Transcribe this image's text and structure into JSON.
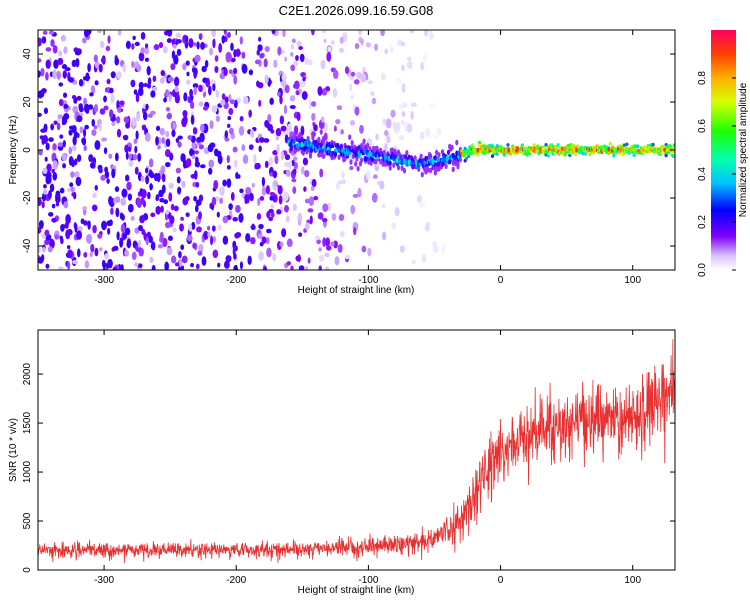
{
  "title": "C2E1.2026.099.16.59.G08",
  "colors": {
    "signal": "#e83030",
    "grid_text": "#000000"
  },
  "chart_data": [
    {
      "type": "heatmap",
      "title": "C2E1.2026.099.16.59.G08",
      "xlabel": "Height of straight line (km)",
      "ylabel": "Frequency (Hz)",
      "xlim": [
        -350,
        132
      ],
      "ylim": [
        -50,
        50
      ],
      "xticks": [
        -300,
        -200,
        -100,
        0,
        100
      ],
      "yticks": [
        -40,
        -20,
        0,
        20,
        40
      ],
      "colorbar": {
        "label": "Normalized spectral amplitude",
        "range": [
          0.0,
          1.0
        ],
        "ticks": [
          0.0,
          0.2,
          0.4,
          0.6,
          0.8
        ],
        "colormap": "rainbow (white/violet to red)"
      },
      "description_points": [
        {
          "x": -350,
          "line_freq": null,
          "noise_amplitude": 0.35
        },
        {
          "x": -160,
          "line_freq": 3,
          "noise_amplitude": 0.25
        },
        {
          "x": -100,
          "line_freq": -2,
          "noise_amplitude": 0.12
        },
        {
          "x": -60,
          "line_freq": -6,
          "noise_amplitude": 0.06
        },
        {
          "x": -35,
          "line_freq": -3,
          "noise_amplitude": 0.0
        },
        {
          "x": -20,
          "line_freq": 0,
          "noise_amplitude": 0.0
        },
        {
          "x": 132,
          "line_freq": 0,
          "noise_amplitude": 0.0
        }
      ]
    },
    {
      "type": "line",
      "xlabel": "Height of straight line (km)",
      "ylabel": "SNR (10 * v/v)",
      "xlim": [
        -350,
        132
      ],
      "ylim": [
        0,
        2450
      ],
      "xticks": [
        -300,
        -200,
        -100,
        0,
        100
      ],
      "yticks": [
        0,
        500,
        1000,
        1500,
        2000
      ],
      "series": [
        {
          "name": "SNR",
          "color": "#e83030",
          "x": [
            -350,
            -300,
            -250,
            -200,
            -150,
            -100,
            -70,
            -50,
            -40,
            -30,
            -20,
            -10,
            0,
            10,
            20,
            30,
            40,
            50,
            60,
            70,
            80,
            90,
            100,
            110,
            120,
            132
          ],
          "mean": [
            200,
            200,
            200,
            205,
            210,
            240,
            270,
            320,
            400,
            520,
            750,
            1050,
            1200,
            1250,
            1400,
            1450,
            1450,
            1500,
            1550,
            1500,
            1550,
            1500,
            1600,
            1650,
            1750,
            1850
          ],
          "spread": [
            70,
            70,
            70,
            70,
            75,
            80,
            90,
            110,
            150,
            180,
            250,
            300,
            300,
            300,
            300,
            320,
            320,
            330,
            330,
            330,
            330,
            340,
            340,
            340,
            350,
            350
          ]
        }
      ]
    }
  ]
}
